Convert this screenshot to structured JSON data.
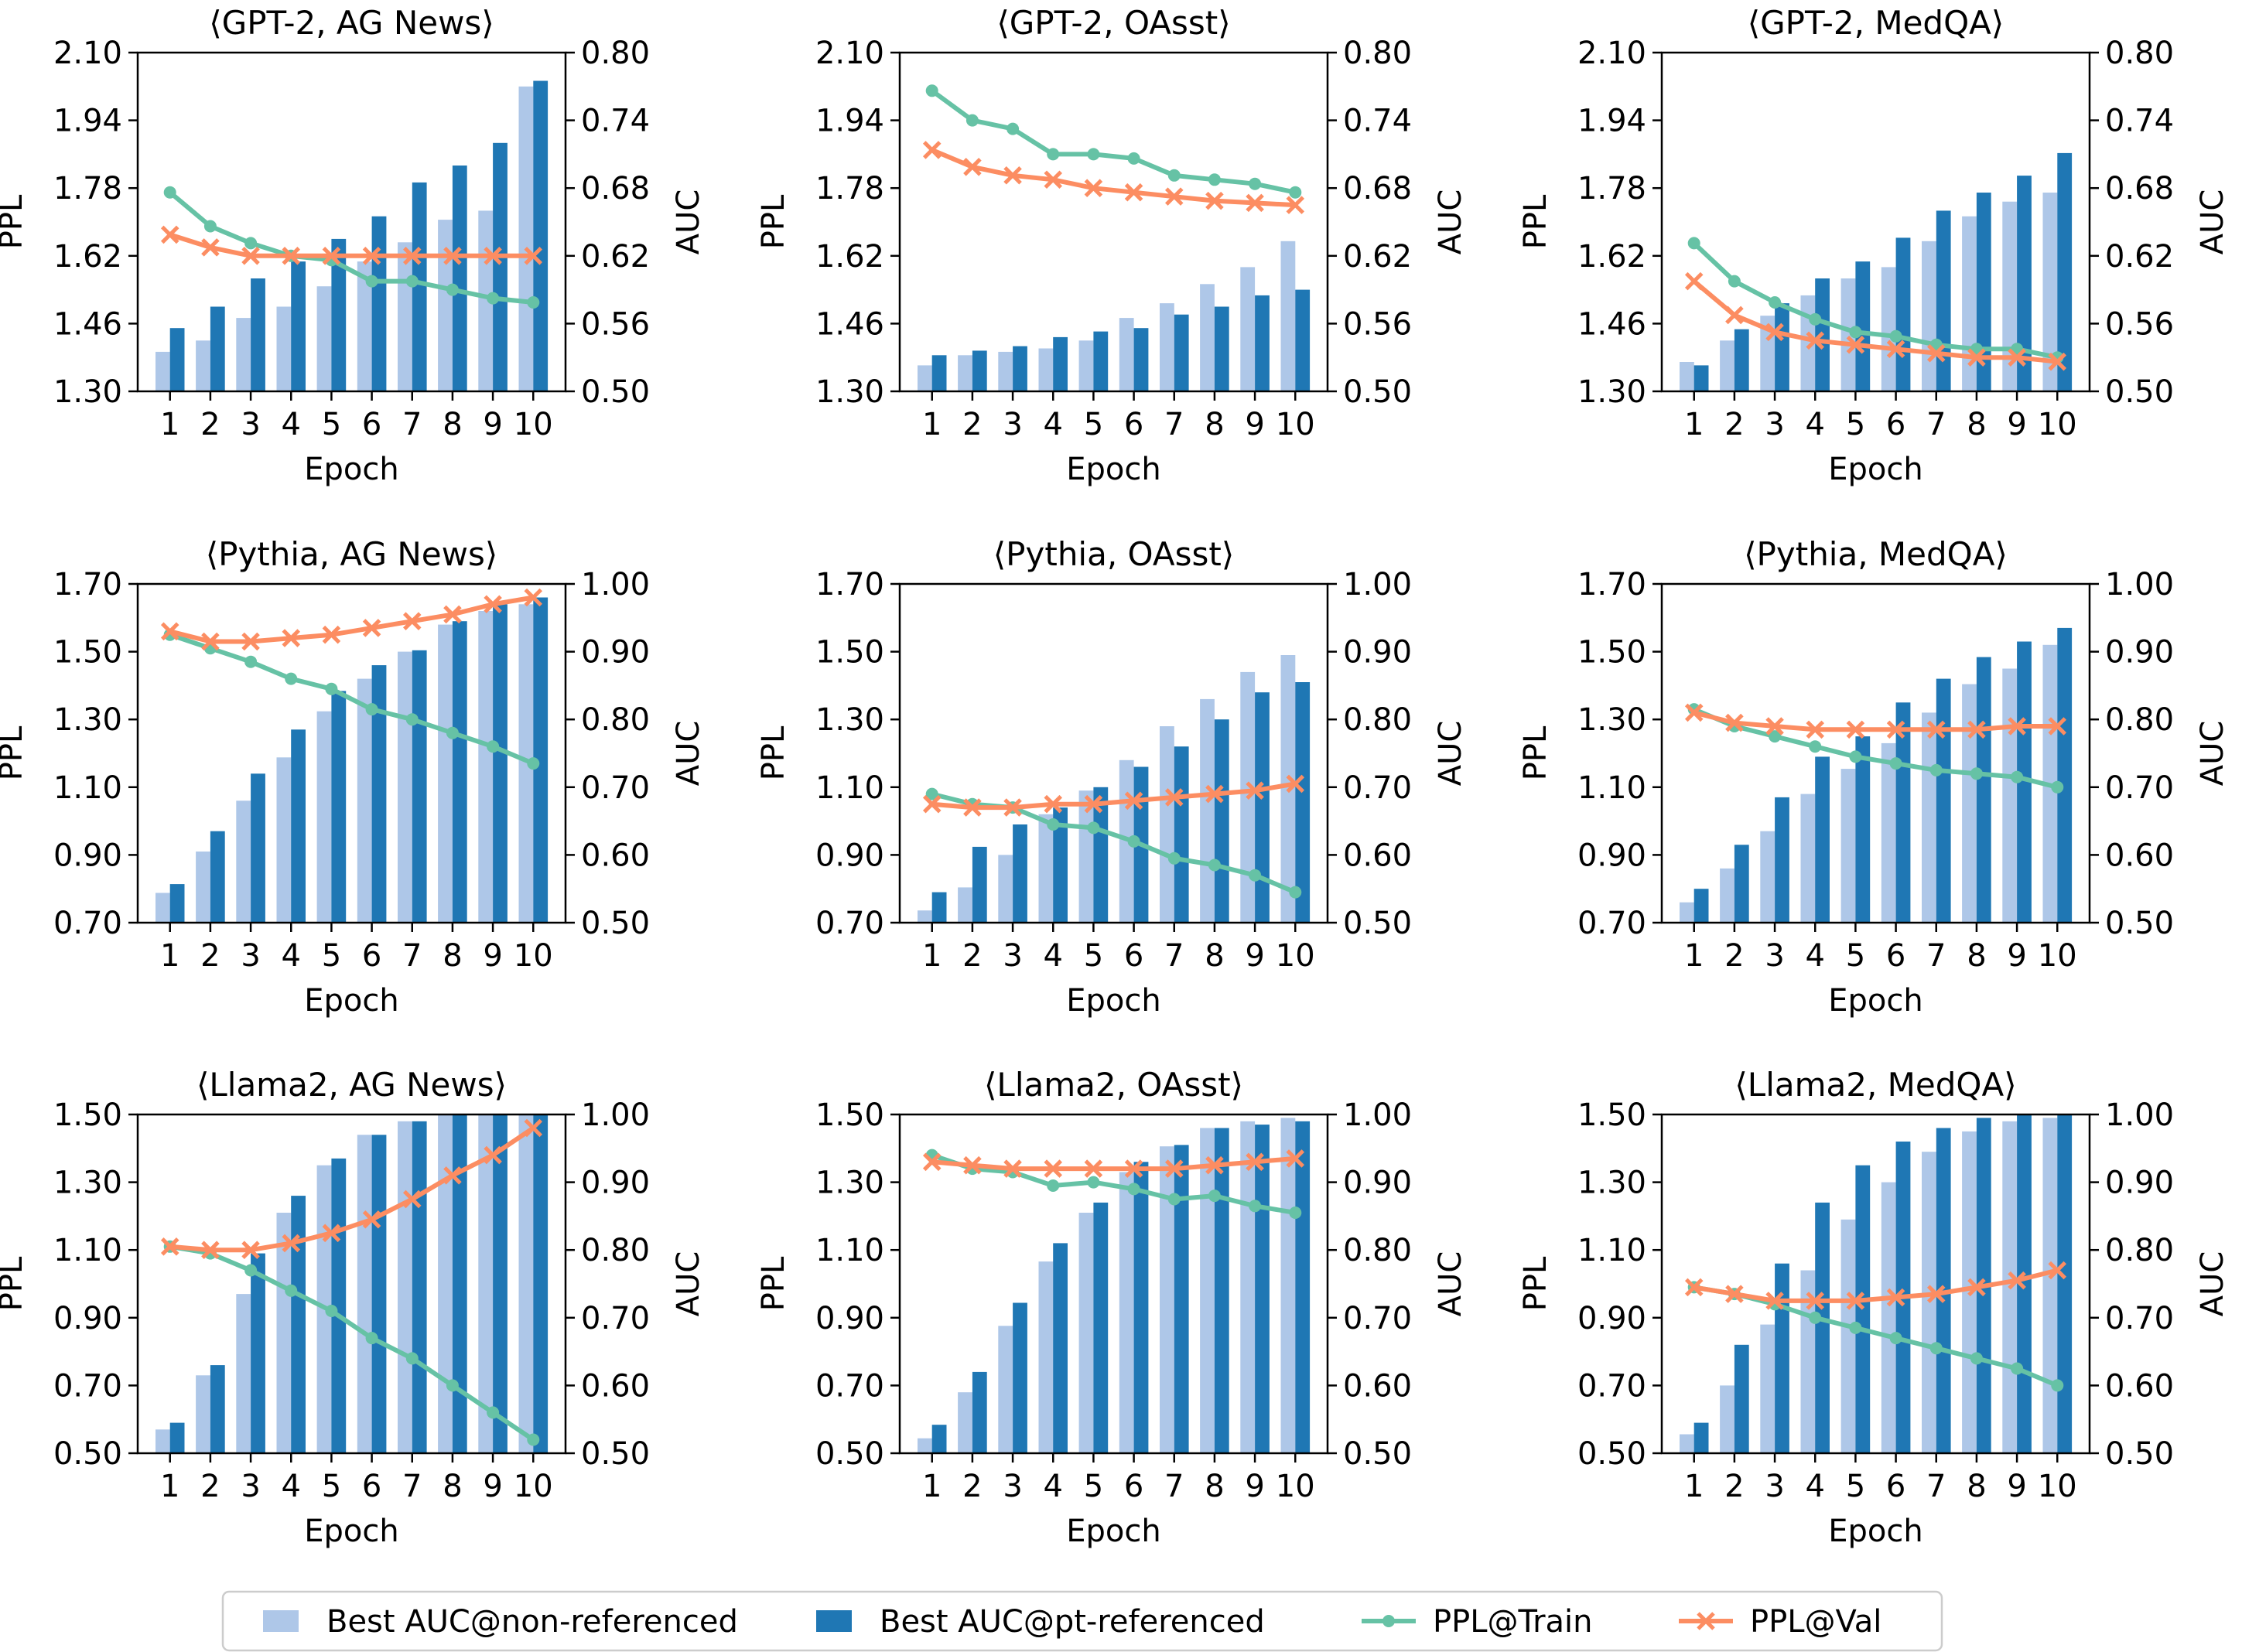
{
  "colors": {
    "non_ref": "#aec7e8",
    "pt_ref": "#1f77b4",
    "ppl_train": "#66c2a5",
    "ppl_val": "#fc8d62"
  },
  "legend": [
    {
      "label": "Best AUC@non-referenced",
      "kind": "bar",
      "color": "#aec7e8"
    },
    {
      "label": "Best AUC@pt-referenced",
      "kind": "bar",
      "color": "#1f77b4"
    },
    {
      "label": "PPL@Train",
      "kind": "line-dot",
      "color": "#66c2a5"
    },
    {
      "label": "PPL@Val",
      "kind": "line-x",
      "color": "#fc8d62"
    }
  ],
  "chart_data": [
    {
      "type": "bar+line",
      "title": "⟨GPT-2, AG News⟩",
      "xlabel": "Epoch",
      "ylabel_left": "PPL",
      "ylabel_right": "AUC",
      "categories": [
        "1",
        "2",
        "3",
        "4",
        "5",
        "6",
        "7",
        "8",
        "9",
        "10"
      ],
      "ylim_left": [
        1.3,
        2.1
      ],
      "yticks_left": [
        "1.30",
        "1.46",
        "1.62",
        "1.78",
        "1.94",
        "2.10"
      ],
      "ylim_right": [
        0.5,
        0.8
      ],
      "yticks_right": [
        "0.50",
        "0.56",
        "0.62",
        "0.68",
        "0.74",
        "0.80"
      ],
      "series": [
        {
          "name": "Best AUC@non-referenced",
          "axis": "right",
          "values": [
            0.535,
            0.545,
            0.565,
            0.575,
            0.593,
            0.615,
            0.632,
            0.652,
            0.66,
            0.77
          ]
        },
        {
          "name": "Best AUC@pt-referenced",
          "axis": "right",
          "values": [
            0.556,
            0.575,
            0.6,
            0.615,
            0.635,
            0.655,
            0.685,
            0.7,
            0.72,
            0.775
          ]
        },
        {
          "name": "PPL@Train",
          "axis": "left",
          "values": [
            1.77,
            1.69,
            1.65,
            1.62,
            1.61,
            1.56,
            1.56,
            1.54,
            1.52,
            1.51
          ]
        },
        {
          "name": "PPL@Val",
          "axis": "left",
          "values": [
            1.67,
            1.64,
            1.62,
            1.62,
            1.62,
            1.62,
            1.62,
            1.62,
            1.62,
            1.62
          ]
        }
      ]
    },
    {
      "type": "bar+line",
      "title": "⟨GPT-2, OAsst⟩",
      "xlabel": "Epoch",
      "ylabel_left": "PPL",
      "ylabel_right": "AUC",
      "categories": [
        "1",
        "2",
        "3",
        "4",
        "5",
        "6",
        "7",
        "8",
        "9",
        "10"
      ],
      "ylim_left": [
        1.3,
        2.1
      ],
      "yticks_left": [
        "1.30",
        "1.46",
        "1.62",
        "1.78",
        "1.94",
        "2.10"
      ],
      "ylim_right": [
        0.5,
        0.8
      ],
      "yticks_right": [
        "0.50",
        "0.56",
        "0.62",
        "0.68",
        "0.74",
        "0.80"
      ],
      "series": [
        {
          "name": "Best AUC@non-referenced",
          "axis": "right",
          "values": [
            0.523,
            0.532,
            0.535,
            0.538,
            0.545,
            0.565,
            0.578,
            0.595,
            0.61,
            0.633
          ]
        },
        {
          "name": "Best AUC@pt-referenced",
          "axis": "right",
          "values": [
            0.532,
            0.536,
            0.54,
            0.548,
            0.553,
            0.556,
            0.568,
            0.575,
            0.585,
            0.59
          ]
        },
        {
          "name": "PPL@Train",
          "axis": "left",
          "values": [
            2.01,
            1.94,
            1.92,
            1.86,
            1.86,
            1.85,
            1.81,
            1.8,
            1.79,
            1.77
          ]
        },
        {
          "name": "PPL@Val",
          "axis": "left",
          "values": [
            1.87,
            1.83,
            1.81,
            1.8,
            1.78,
            1.77,
            1.76,
            1.75,
            1.745,
            1.74
          ]
        }
      ]
    },
    {
      "type": "bar+line",
      "title": "⟨GPT-2, MedQA⟩",
      "xlabel": "Epoch",
      "ylabel_left": "PPL",
      "ylabel_right": "AUC",
      "categories": [
        "1",
        "2",
        "3",
        "4",
        "5",
        "6",
        "7",
        "8",
        "9",
        "10"
      ],
      "ylim_left": [
        1.3,
        2.1
      ],
      "yticks_left": [
        "1.30",
        "1.46",
        "1.62",
        "1.78",
        "1.94",
        "2.10"
      ],
      "ylim_right": [
        0.5,
        0.8
      ],
      "yticks_right": [
        "0.50",
        "0.56",
        "0.62",
        "0.68",
        "0.74",
        "0.80"
      ],
      "series": [
        {
          "name": "Best AUC@non-referenced",
          "axis": "right",
          "values": [
            0.526,
            0.545,
            0.567,
            0.585,
            0.6,
            0.61,
            0.633,
            0.655,
            0.668,
            0.676
          ]
        },
        {
          "name": "Best AUC@pt-referenced",
          "axis": "right",
          "values": [
            0.523,
            0.555,
            0.578,
            0.6,
            0.615,
            0.636,
            0.66,
            0.676,
            0.691,
            0.711
          ]
        },
        {
          "name": "PPL@Train",
          "axis": "left",
          "values": [
            1.65,
            1.56,
            1.51,
            1.47,
            1.44,
            1.43,
            1.41,
            1.4,
            1.4,
            1.38
          ]
        },
        {
          "name": "PPL@Val",
          "axis": "left",
          "values": [
            1.56,
            1.48,
            1.44,
            1.42,
            1.41,
            1.4,
            1.39,
            1.38,
            1.38,
            1.37
          ]
        }
      ]
    },
    {
      "type": "bar+line",
      "title": "⟨Pythia, AG News⟩",
      "xlabel": "Epoch",
      "ylabel_left": "PPL",
      "ylabel_right": "AUC",
      "categories": [
        "1",
        "2",
        "3",
        "4",
        "5",
        "6",
        "7",
        "8",
        "9",
        "10"
      ],
      "ylim_left": [
        0.7,
        1.7
      ],
      "yticks_left": [
        "0.70",
        "0.90",
        "1.10",
        "1.30",
        "1.50",
        "1.70"
      ],
      "ylim_right": [
        0.5,
        1.0
      ],
      "yticks_right": [
        "0.50",
        "0.60",
        "0.70",
        "0.80",
        "0.90",
        "1.00"
      ],
      "series": [
        {
          "name": "Best AUC@non-referenced",
          "axis": "right",
          "values": [
            0.544,
            0.605,
            0.68,
            0.744,
            0.812,
            0.86,
            0.9,
            0.94,
            0.96,
            0.97
          ]
        },
        {
          "name": "Best AUC@pt-referenced",
          "axis": "right",
          "values": [
            0.557,
            0.635,
            0.72,
            0.785,
            0.842,
            0.88,
            0.902,
            0.945,
            0.97,
            0.98
          ]
        },
        {
          "name": "PPL@Train",
          "axis": "left",
          "values": [
            1.55,
            1.51,
            1.47,
            1.42,
            1.39,
            1.33,
            1.3,
            1.26,
            1.22,
            1.17
          ]
        },
        {
          "name": "PPL@Val",
          "axis": "left",
          "values": [
            1.56,
            1.53,
            1.53,
            1.54,
            1.55,
            1.57,
            1.59,
            1.61,
            1.64,
            1.66
          ]
        }
      ]
    },
    {
      "type": "bar+line",
      "title": "⟨Pythia, OAsst⟩",
      "xlabel": "Epoch",
      "ylabel_left": "PPL",
      "ylabel_right": "AUC",
      "categories": [
        "1",
        "2",
        "3",
        "4",
        "5",
        "6",
        "7",
        "8",
        "9",
        "10"
      ],
      "ylim_left": [
        0.7,
        1.7
      ],
      "yticks_left": [
        "0.70",
        "0.90",
        "1.10",
        "1.30",
        "1.50",
        "1.70"
      ],
      "ylim_right": [
        0.5,
        1.0
      ],
      "yticks_right": [
        "0.50",
        "0.60",
        "0.70",
        "0.80",
        "0.90",
        "1.00"
      ],
      "series": [
        {
          "name": "Best AUC@non-referenced",
          "axis": "right",
          "values": [
            0.518,
            0.552,
            0.6,
            0.66,
            0.695,
            0.74,
            0.79,
            0.83,
            0.87,
            0.895
          ]
        },
        {
          "name": "Best AUC@pt-referenced",
          "axis": "right",
          "values": [
            0.545,
            0.612,
            0.645,
            0.67,
            0.7,
            0.73,
            0.76,
            0.8,
            0.84,
            0.855
          ]
        },
        {
          "name": "PPL@Train",
          "axis": "left",
          "values": [
            1.08,
            1.05,
            1.04,
            0.99,
            0.98,
            0.94,
            0.89,
            0.87,
            0.84,
            0.79
          ]
        },
        {
          "name": "PPL@Val",
          "axis": "left",
          "values": [
            1.05,
            1.04,
            1.04,
            1.05,
            1.05,
            1.06,
            1.07,
            1.08,
            1.09,
            1.11
          ]
        }
      ]
    },
    {
      "type": "bar+line",
      "title": "⟨Pythia, MedQA⟩",
      "xlabel": "Epoch",
      "ylabel_left": "PPL",
      "ylabel_right": "AUC",
      "categories": [
        "1",
        "2",
        "3",
        "4",
        "5",
        "6",
        "7",
        "8",
        "9",
        "10"
      ],
      "ylim_left": [
        0.7,
        1.7
      ],
      "yticks_left": [
        "0.70",
        "0.90",
        "1.10",
        "1.30",
        "1.50",
        "1.70"
      ],
      "ylim_right": [
        0.5,
        1.0
      ],
      "yticks_right": [
        "0.50",
        "0.60",
        "0.70",
        "0.80",
        "0.90",
        "1.00"
      ],
      "series": [
        {
          "name": "Best AUC@non-referenced",
          "axis": "right",
          "values": [
            0.53,
            0.58,
            0.635,
            0.69,
            0.727,
            0.765,
            0.81,
            0.852,
            0.875,
            0.91
          ]
        },
        {
          "name": "Best AUC@pt-referenced",
          "axis": "right",
          "values": [
            0.55,
            0.615,
            0.685,
            0.745,
            0.775,
            0.825,
            0.86,
            0.892,
            0.915,
            0.935
          ]
        },
        {
          "name": "PPL@Train",
          "axis": "left",
          "values": [
            1.33,
            1.28,
            1.25,
            1.22,
            1.19,
            1.17,
            1.15,
            1.14,
            1.13,
            1.1
          ]
        },
        {
          "name": "PPL@Val",
          "axis": "left",
          "values": [
            1.32,
            1.29,
            1.28,
            1.27,
            1.27,
            1.27,
            1.27,
            1.27,
            1.28,
            1.28
          ]
        }
      ]
    },
    {
      "type": "bar+line",
      "title": "⟨Llama2, AG News⟩",
      "xlabel": "Epoch",
      "ylabel_left": "PPL",
      "ylabel_right": "AUC",
      "categories": [
        "1",
        "2",
        "3",
        "4",
        "5",
        "6",
        "7",
        "8",
        "9",
        "10"
      ],
      "ylim_left": [
        0.5,
        1.5
      ],
      "yticks_left": [
        "0.50",
        "0.70",
        "0.90",
        "1.10",
        "1.30",
        "1.50"
      ],
      "ylim_right": [
        0.5,
        1.0
      ],
      "yticks_right": [
        "0.50",
        "0.60",
        "0.70",
        "0.80",
        "0.90",
        "1.00"
      ],
      "series": [
        {
          "name": "Best AUC@non-referenced",
          "axis": "right",
          "values": [
            0.535,
            0.615,
            0.735,
            0.855,
            0.925,
            0.97,
            0.99,
            1.0,
            1.0,
            1.0
          ]
        },
        {
          "name": "Best AUC@pt-referenced",
          "axis": "right",
          "values": [
            0.545,
            0.63,
            0.795,
            0.88,
            0.935,
            0.97,
            0.99,
            1.0,
            1.0,
            1.0
          ]
        },
        {
          "name": "PPL@Train",
          "axis": "left",
          "values": [
            1.11,
            1.09,
            1.04,
            0.98,
            0.92,
            0.84,
            0.78,
            0.7,
            0.62,
            0.54
          ]
        },
        {
          "name": "PPL@Val",
          "axis": "left",
          "values": [
            1.11,
            1.1,
            1.1,
            1.12,
            1.15,
            1.19,
            1.25,
            1.32,
            1.38,
            1.46
          ]
        }
      ]
    },
    {
      "type": "bar+line",
      "title": "⟨Llama2, OAsst⟩",
      "xlabel": "Epoch",
      "ylabel_left": "PPL",
      "ylabel_right": "AUC",
      "categories": [
        "1",
        "2",
        "3",
        "4",
        "5",
        "6",
        "7",
        "8",
        "9",
        "10"
      ],
      "ylim_left": [
        0.5,
        1.5
      ],
      "yticks_left": [
        "0.50",
        "0.70",
        "0.90",
        "1.10",
        "1.30",
        "1.50"
      ],
      "ylim_right": [
        0.5,
        1.0
      ],
      "yticks_right": [
        "0.50",
        "0.60",
        "0.70",
        "0.80",
        "0.90",
        "1.00"
      ],
      "series": [
        {
          "name": "Best AUC@non-referenced",
          "axis": "right",
          "values": [
            0.522,
            0.59,
            0.688,
            0.783,
            0.855,
            0.915,
            0.953,
            0.98,
            0.99,
            0.995
          ]
        },
        {
          "name": "Best AUC@pt-referenced",
          "axis": "right",
          "values": [
            0.542,
            0.62,
            0.722,
            0.81,
            0.87,
            0.93,
            0.955,
            0.98,
            0.985,
            0.99
          ]
        },
        {
          "name": "PPL@Train",
          "axis": "left",
          "values": [
            1.38,
            1.34,
            1.33,
            1.29,
            1.3,
            1.28,
            1.25,
            1.26,
            1.23,
            1.21
          ]
        },
        {
          "name": "PPL@Val",
          "axis": "left",
          "values": [
            1.36,
            1.35,
            1.34,
            1.34,
            1.34,
            1.34,
            1.34,
            1.35,
            1.36,
            1.37
          ]
        }
      ]
    },
    {
      "type": "bar+line",
      "title": "⟨Llama2, MedQA⟩",
      "xlabel": "Epoch",
      "ylabel_left": "PPL",
      "ylabel_right": "AUC",
      "categories": [
        "1",
        "2",
        "3",
        "4",
        "5",
        "6",
        "7",
        "8",
        "9",
        "10"
      ],
      "ylim_left": [
        0.5,
        1.5
      ],
      "yticks_left": [
        "0.50",
        "0.70",
        "0.90",
        "1.10",
        "1.30",
        "1.50"
      ],
      "ylim_right": [
        0.5,
        1.0
      ],
      "yticks_right": [
        "0.50",
        "0.60",
        "0.70",
        "0.80",
        "0.90",
        "1.00"
      ],
      "series": [
        {
          "name": "Best AUC@non-referenced",
          "axis": "right",
          "values": [
            0.528,
            0.6,
            0.69,
            0.77,
            0.845,
            0.9,
            0.945,
            0.975,
            0.99,
            0.995
          ]
        },
        {
          "name": "Best AUC@pt-referenced",
          "axis": "right",
          "values": [
            0.545,
            0.66,
            0.78,
            0.87,
            0.925,
            0.96,
            0.98,
            0.995,
            1.0,
            1.0
          ]
        },
        {
          "name": "PPL@Train",
          "axis": "left",
          "values": [
            0.99,
            0.97,
            0.94,
            0.9,
            0.87,
            0.84,
            0.81,
            0.78,
            0.75,
            0.7
          ]
        },
        {
          "name": "PPL@Val",
          "axis": "left",
          "values": [
            0.99,
            0.97,
            0.95,
            0.95,
            0.95,
            0.96,
            0.97,
            0.99,
            1.01,
            1.04
          ]
        }
      ]
    }
  ]
}
